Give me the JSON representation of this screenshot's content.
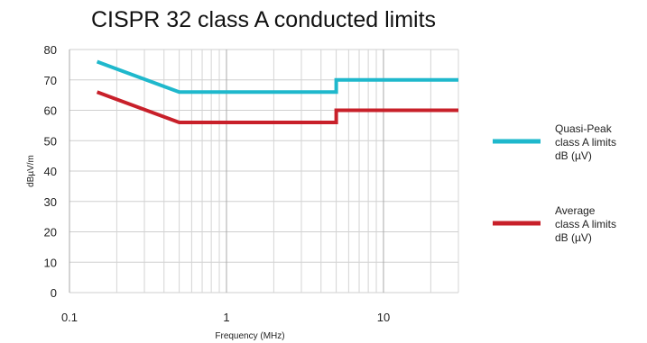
{
  "chart_data": {
    "type": "line",
    "title": "CISPR 32 class A conducted limits",
    "xlabel": "Frequency (MHz)",
    "ylabel": "dBµV/m",
    "x_scale": "log",
    "xlim": [
      0.1,
      30
    ],
    "ylim": [
      0,
      80
    ],
    "x_ticks": [
      "0.1",
      "1",
      "10"
    ],
    "y_ticks": [
      "0",
      "10",
      "20",
      "30",
      "40",
      "50",
      "60",
      "70",
      "80"
    ],
    "grid": true,
    "legend_position": "right",
    "series": [
      {
        "name": "Quasi-Peak class A limits dB (µV)",
        "color": "#1fb8cc",
        "x": [
          0.15,
          0.5,
          5,
          5,
          30
        ],
        "y": [
          76,
          66,
          66,
          70,
          70
        ]
      },
      {
        "name": "Average class A limits dB (µV)",
        "color": "#c8202a",
        "x": [
          0.15,
          0.5,
          5,
          5,
          30
        ],
        "y": [
          66,
          56,
          56,
          60,
          60
        ]
      }
    ]
  },
  "legend": [
    {
      "lines": [
        "Quasi-Peak",
        "class A limits",
        "dB (µV)"
      ],
      "color": "#1fb8cc"
    },
    {
      "lines": [
        "Average",
        "class A limits",
        "dB (µV)"
      ],
      "color": "#c8202a"
    }
  ]
}
